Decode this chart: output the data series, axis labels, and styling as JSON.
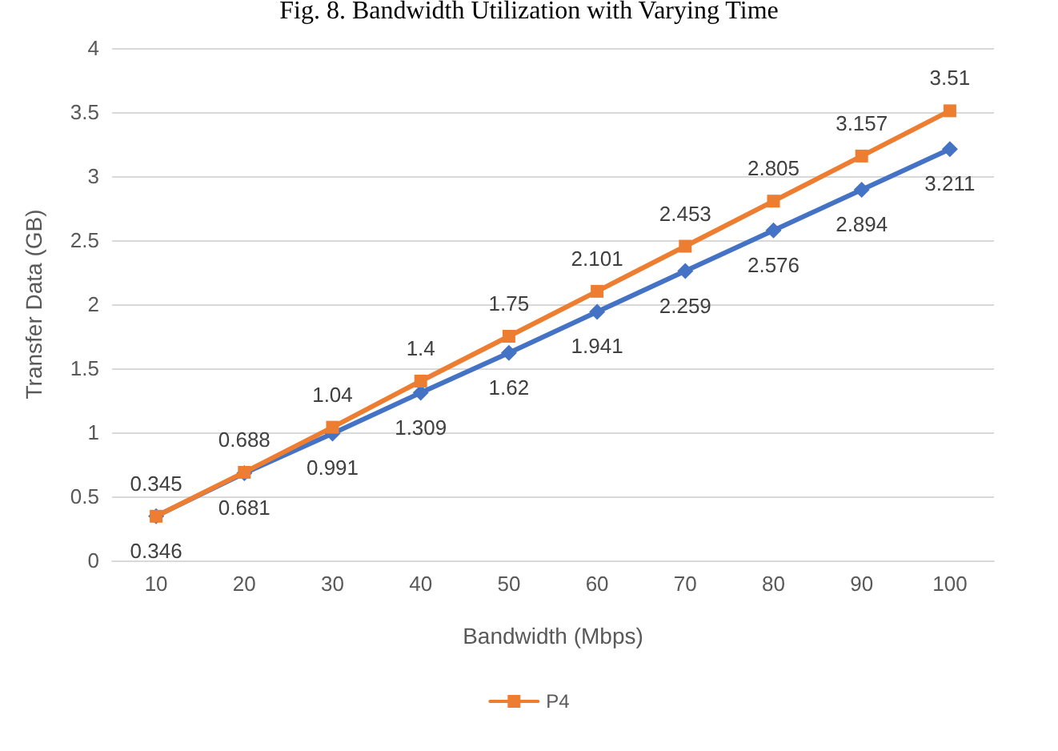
{
  "chart_data": {
    "type": "line",
    "title": "Fig. 8. Bandwidth Utilization with Varying Time",
    "xlabel": "Bandwidth (Mbps)",
    "ylabel": "Transfer Data (GB)",
    "categories": [
      "10",
      "20",
      "30",
      "40",
      "50",
      "60",
      "70",
      "80",
      "90",
      "100"
    ],
    "series": [
      {
        "color": "#4472c4",
        "marker": "diamond",
        "values": [
          0.346,
          0.681,
          0.991,
          1.309,
          1.62,
          1.941,
          2.259,
          2.576,
          2.894,
          3.211
        ]
      },
      {
        "name": "P4",
        "color": "#ed7d31",
        "marker": "square",
        "values": [
          0.345,
          0.688,
          1.04,
          1.4,
          1.75,
          2.101,
          2.453,
          2.805,
          3.157,
          3.51
        ]
      }
    ],
    "ylim": [
      0,
      4
    ],
    "yticks": [
      0,
      0.5,
      1,
      1.5,
      2,
      2.5,
      3,
      3.5,
      4
    ],
    "grid": "y",
    "legend": "bottom",
    "data_labels": true
  }
}
